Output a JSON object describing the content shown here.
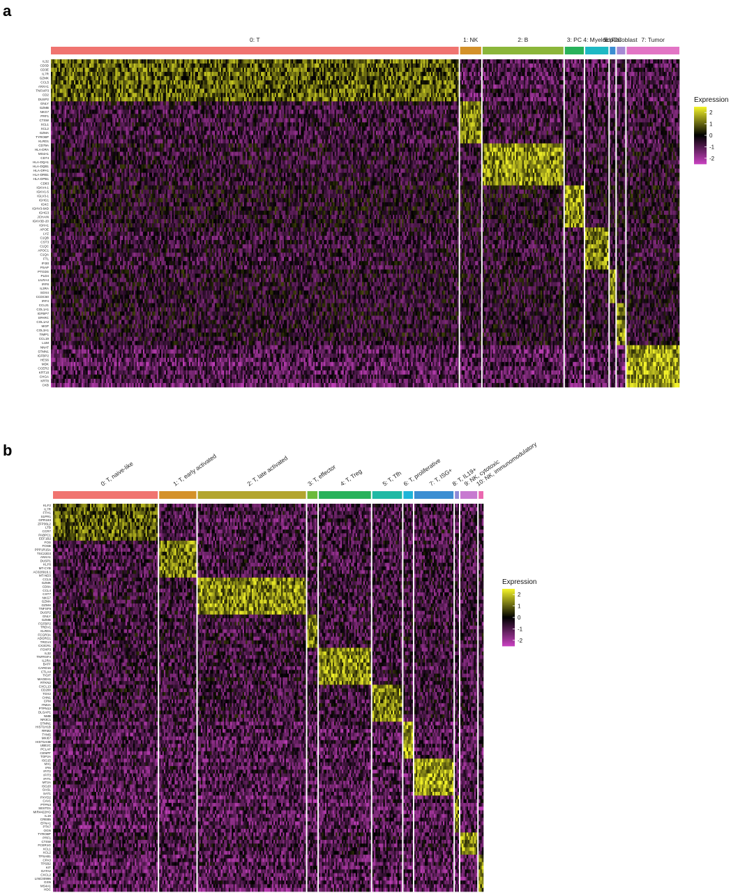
{
  "legend": {
    "title": "Expression",
    "ticks": [
      "2",
      "1",
      "0",
      "-1",
      "-2"
    ]
  },
  "colors": {
    "low": "#c842c0",
    "mid": "#000000",
    "high": "#f5f52a"
  },
  "chart_data": [
    {
      "panel": "a",
      "type": "heatmap",
      "color_range": [
        -2.5,
        2.5
      ],
      "clusters": [
        {
          "name": "0: T",
          "color": "#f07470",
          "weight": 580
        },
        {
          "name": "1: NK",
          "color": "#d4912a",
          "weight": 30
        },
        {
          "name": "2: B",
          "color": "#8bb63a",
          "weight": 115
        },
        {
          "name": "3: PC",
          "color": "#29b25b",
          "weight": 27
        },
        {
          "name": "4: Myeloid",
          "color": "#1eb9c4",
          "weight": 33
        },
        {
          "name": "5: pDC",
          "color": "#3b8ed2",
          "weight": 8
        },
        {
          "name": "6: Fibroblast",
          "color": "#a68ad4",
          "weight": 12
        },
        {
          "name": "7: Tumor",
          "color": "#e275c5",
          "weight": 75
        }
      ],
      "genes": [
        "IL32",
        "CD3D",
        "CD3E",
        "IL7R",
        "GZMK",
        "CCL5",
        "ANXA1",
        "TNFAIP3",
        "CD2",
        "DUSP2",
        "GNLY",
        "GZMB",
        "NKG7",
        "PRF1",
        "CTSW",
        "XCL1",
        "XCL2",
        "GZMA",
        "TYROBP",
        "KLRD1",
        "CD79A",
        "HLA-DRA",
        "MS4A1",
        "CD74",
        "HLA-DQA1",
        "HLA-DQB1",
        "HLA-DPA1",
        "HLA-DRB1",
        "HLA-DPB1",
        "CD83",
        "IGKV4-1",
        "IGKV1-5",
        "IGLV3-1",
        "IGHG1",
        "IGKC",
        "IGHV3-64D",
        "IGHG3",
        "JCHAIN",
        "IGKV3D-20",
        "IGHA1",
        "APOE",
        "LYZ",
        "C1QB",
        "CST3",
        "C1QC",
        "APOC1",
        "C1QA",
        "FTL",
        "IFI30",
        "PSAP",
        "PTGDS",
        "PLD4",
        "LILRA4",
        "IRF8",
        "IL3RA",
        "SOX4",
        "CCDC50",
        "IRF4",
        "CCL21",
        "COL1A1",
        "IGFBP7",
        "SPARC",
        "COL1A2",
        "MGP",
        "COL3A1",
        "TIMP1",
        "CCL19",
        "LUM",
        "NNAT",
        "STMN1",
        "IGFBP2",
        "HES6",
        "MDK",
        "CCER2",
        "KRT18",
        "CHGA",
        "KRT8",
        "CKB"
      ],
      "gene_groups": [
        10,
        10,
        10,
        10,
        10,
        8,
        10,
        10
      ],
      "group_high": [
        0.95,
        1.25,
        1.45,
        1.5,
        1.35,
        1.4,
        1.3,
        1.6
      ],
      "group_low": [
        -1.2,
        -0.9,
        -0.7,
        -0.5,
        -0.8,
        -0.6,
        -0.6,
        -1.3
      ]
    },
    {
      "panel": "b",
      "type": "heatmap",
      "color_range": [
        -2.5,
        2.5
      ],
      "clusters": [
        {
          "name": "0: T, naive-like",
          "color": "#f07470",
          "weight": 155
        },
        {
          "name": "1: T, early activated",
          "color": "#d4912a",
          "weight": 55
        },
        {
          "name": "2: T, late activated",
          "color": "#b3a52e",
          "weight": 160
        },
        {
          "name": "3: T, effector",
          "color": "#6cba3b",
          "weight": 15
        },
        {
          "name": "4: T, Treg",
          "color": "#29b25b",
          "weight": 77
        },
        {
          "name": "5: T, Tfh",
          "color": "#20b9a4",
          "weight": 44
        },
        {
          "name": "6: T, proliferative",
          "color": "#1eb4d8",
          "weight": 14
        },
        {
          "name": "7: T, ISG+",
          "color": "#3b8ed2",
          "weight": 58
        },
        {
          "name": "8: T, IL19+",
          "color": "#8e8ad6",
          "weight": 6
        },
        {
          "name": "9: NK, cytotoxic",
          "color": "#c77ad0",
          "weight": 25
        },
        {
          "name": "10: NK, immunomodulatory",
          "color": "#ea68b0",
          "weight": 7
        }
      ],
      "genes": [
        "KLF2",
        "IL7R",
        "FTH1",
        "S1PR1",
        "GPR183",
        "ZFP36L2",
        "LTB",
        "CCR7",
        "PABPC1",
        "EEF1B2",
        "FOS",
        "FOSB",
        "PPP1R15A",
        "TSC22D3",
        "ANXA1",
        "DUSP1",
        "KLF6",
        "MT-CYB",
        "AC020916.1",
        "MT-ND3",
        "CCL5",
        "GZMK",
        "CD8A",
        "CCL4",
        "CST7",
        "NKG7",
        "GZMA",
        "GZMH",
        "TNFSF9",
        "DUSP2",
        "GNLY",
        "GZMB",
        "FGFBP2",
        "TRDV1",
        "KLRD1",
        "FCGR3A",
        "ADGRG1",
        "TRGV4",
        "CX3CR1",
        "FOXP3",
        "IL32",
        "TNFRSF4",
        "IL2RA",
        "BATF",
        "CARD16",
        "CTLA4",
        "TIGIT",
        "MAGEH1",
        "RTKN2",
        "CXCL13",
        "CD200",
        "TOX2",
        "CHN1",
        "CPM",
        "ITM2A",
        "PTPN13",
        "DLGAP1",
        "NMB",
        "NR3C1",
        "STMN1",
        "HIST1H1B",
        "RRM2",
        "TYMS",
        "MKI67",
        "HIST1H3B",
        "UBE2C",
        "PCLAF",
        "CENPF",
        "TOP2A",
        "ISG15",
        "MX1",
        "IFI6",
        "IFIT2",
        "IFIT3",
        "IFIT1",
        "MT2A",
        "ISG20",
        "OASL",
        "SAT1",
        "PXYD2",
        "CAV1",
        "PTPN3",
        "SESTD1",
        "MIR4422HG",
        "IL19",
        "CREB5",
        "EFNA1",
        "PTK7",
        "OGN",
        "TYROBP",
        "PRF1",
        "CTSW",
        "FCER1G",
        "XCL1",
        "XCL2",
        "TPSAB1",
        "CPA3",
        "TPSB2",
        "KIT",
        "GATA2",
        "CXCL2",
        "LINC00996",
        "GSN",
        "MS4A1",
        "HDC"
      ],
      "gene_groups": [
        10,
        10,
        10,
        9,
        10,
        10,
        10,
        10,
        10,
        6,
        10
      ],
      "group_high": [
        0.95,
        1.2,
        1.4,
        1.4,
        1.4,
        1.3,
        1.7,
        1.6,
        1.2,
        1.4,
        1.3
      ],
      "group_low": [
        -1.1,
        -1.0,
        -0.9,
        -0.9,
        -0.9,
        -0.9,
        -1.2,
        -1.2,
        -1.3,
        -1.0,
        -1.3
      ]
    }
  ]
}
